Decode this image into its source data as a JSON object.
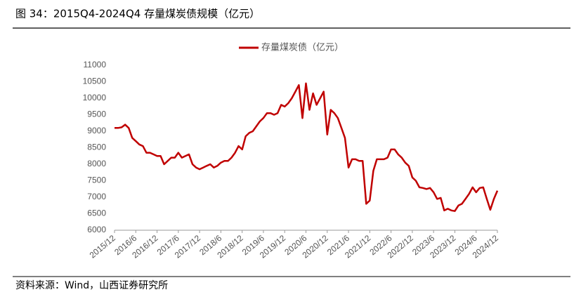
{
  "chart_data": {
    "type": "line",
    "title": "图 34：2015Q4-2024Q4 存量煤炭债规模（亿元）",
    "source": "资料来源：Wind，山西证券研究所",
    "categories": [
      "2015/12",
      null,
      null,
      null,
      null,
      null,
      "2016/6",
      null,
      null,
      null,
      null,
      null,
      "2016/12",
      null,
      null,
      null,
      null,
      null,
      "2017/6",
      null,
      null,
      null,
      null,
      null,
      "2017/12",
      null,
      null,
      null,
      null,
      null,
      "2018/6",
      null,
      null,
      null,
      null,
      null,
      "2018/12",
      null,
      null,
      null,
      null,
      null,
      "2019/6",
      null,
      null,
      null,
      null,
      null,
      "2019/12",
      null,
      null,
      null,
      null,
      null,
      "2020/6",
      null,
      null,
      null,
      null,
      null,
      "2020/12",
      null,
      null,
      null,
      null,
      null,
      "2021/6",
      null,
      null,
      null,
      null,
      null,
      "2021/12",
      null,
      null,
      null,
      null,
      null,
      "2022/6",
      null,
      null,
      null,
      null,
      null,
      "2022/12",
      null,
      null,
      null,
      null,
      null,
      "2023/6",
      null,
      null,
      null,
      null,
      null,
      "2023/12",
      null,
      null,
      null,
      null,
      null,
      "2024/6",
      null,
      null,
      null,
      null,
      null,
      "2024/12"
    ],
    "series": [
      {
        "name": "存量煤炭债（亿元）",
        "color": "#c00000",
        "values": [
          9100,
          9100,
          9120,
          9200,
          9100,
          8800,
          8700,
          8600,
          8550,
          8350,
          8350,
          8300,
          8250,
          8250,
          8000,
          8100,
          8200,
          8200,
          8350,
          8200,
          8250,
          8300,
          8000,
          7900,
          7850,
          7900,
          7950,
          8000,
          7900,
          7950,
          8050,
          8100,
          8100,
          8200,
          8350,
          8550,
          8450,
          8850,
          8950,
          9000,
          9150,
          9300,
          9400,
          9550,
          9550,
          9500,
          9550,
          9800,
          9750,
          9850,
          10000,
          10200,
          10400,
          9400,
          10450,
          9650,
          10150,
          9800,
          10000,
          10200,
          8900,
          9650,
          9550,
          9400,
          9100,
          8800,
          7900,
          8150,
          8150,
          8100,
          8100,
          6800,
          6900,
          7800,
          8150,
          8150,
          8150,
          8200,
          8450,
          8450,
          8300,
          8200,
          8050,
          7950,
          7600,
          7500,
          7300,
          7280,
          7250,
          7280,
          7150,
          6950,
          6980,
          6600,
          6650,
          6600,
          6580,
          6750,
          6800,
          6950,
          7100,
          7300,
          7150,
          7280,
          7300,
          6950,
          6620,
          6950,
          7200
        ]
      }
    ],
    "ylim": [
      6000,
      11000
    ],
    "yticks": [
      6000,
      6500,
      7000,
      7500,
      8000,
      8500,
      9000,
      9500,
      10000,
      10500,
      11000
    ]
  }
}
